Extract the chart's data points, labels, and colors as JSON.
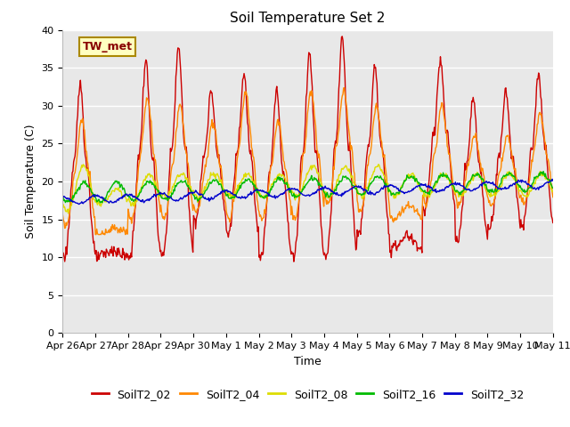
{
  "title": "Soil Temperature Set 2",
  "xlabel": "Time",
  "ylabel": "Soil Temperature (C)",
  "ylim": [
    0,
    40
  ],
  "background_color": "#e8e8e8",
  "fig_background": "#ffffff",
  "series_colors": {
    "SoilT2_02": "#cc0000",
    "SoilT2_04": "#ff8800",
    "SoilT2_08": "#dddd00",
    "SoilT2_16": "#00bb00",
    "SoilT2_32": "#0000cc"
  },
  "xtick_labels": [
    "Apr 26",
    "Apr 27",
    "Apr 28",
    "Apr 29",
    "Apr 30",
    "May 1",
    "May 2",
    "May 3",
    "May 4",
    "May 5",
    "May 6",
    "May 7",
    "May 8",
    "May 9",
    "May 10",
    "May 11"
  ],
  "annotation_text": "TW_met",
  "grid_color": "#ffffff",
  "title_fontsize": 11,
  "axis_fontsize": 9,
  "tick_fontsize": 8,
  "legend_fontsize": 9
}
